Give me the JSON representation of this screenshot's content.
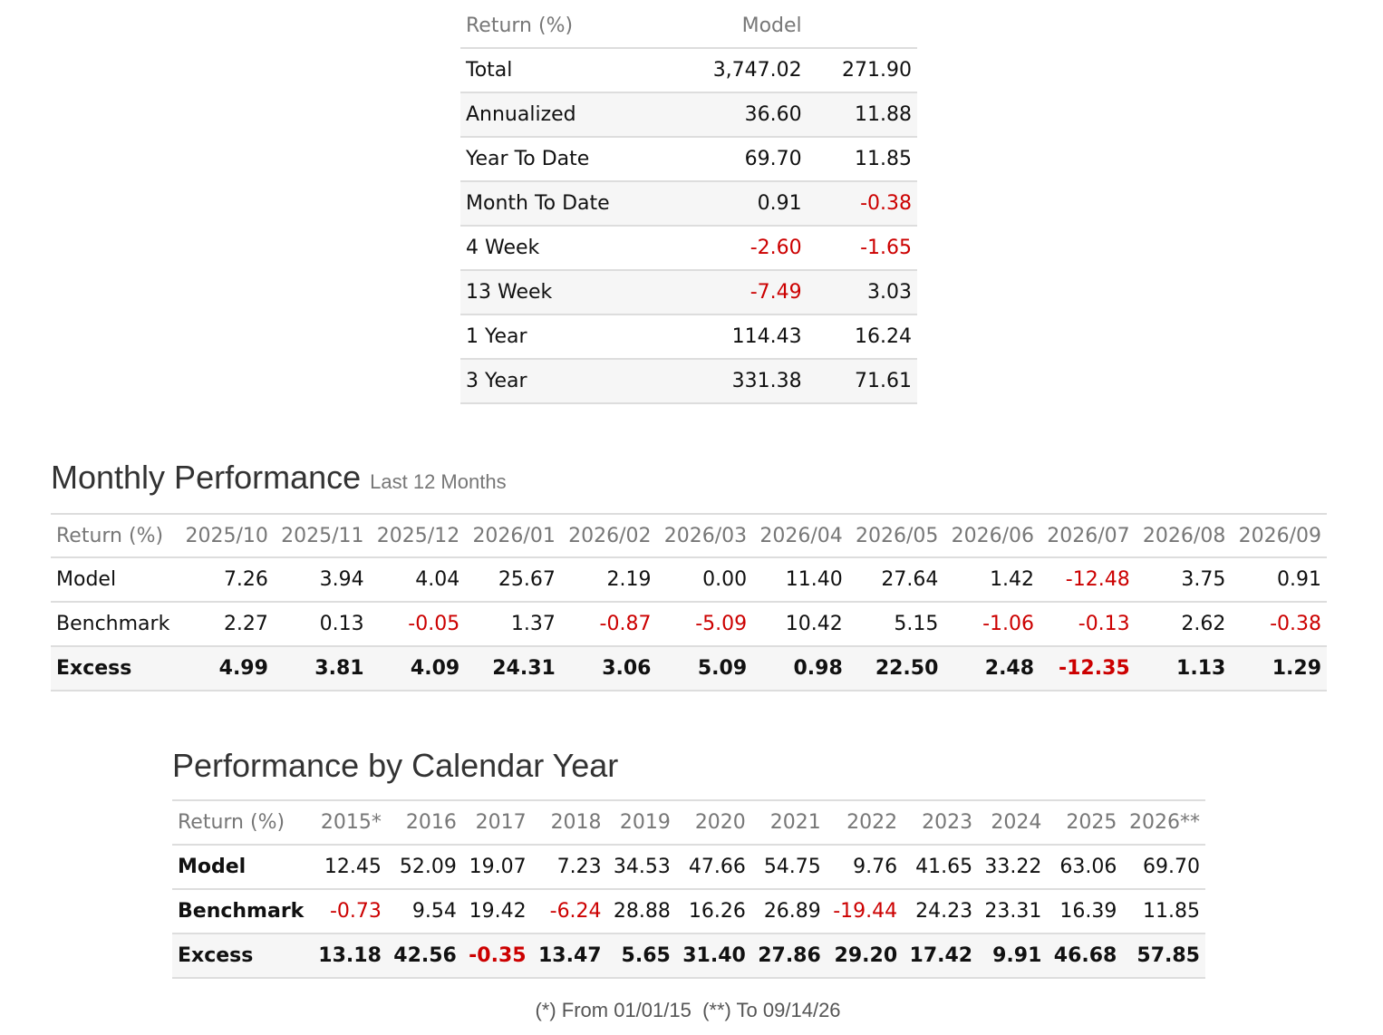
{
  "summary": {
    "headers": [
      "Return (%)",
      "Model",
      ""
    ],
    "rows": [
      {
        "label": "Total",
        "model": "3,747.02",
        "benchmark": "271.90"
      },
      {
        "label": "Annualized",
        "model": "36.60",
        "benchmark": "11.88"
      },
      {
        "label": "Year To Date",
        "model": "69.70",
        "benchmark": "11.85"
      },
      {
        "label": "Month To Date",
        "model": "0.91",
        "benchmark": "-0.38"
      },
      {
        "label": "4 Week",
        "model": "-2.60",
        "benchmark": "-1.65"
      },
      {
        "label": "13 Week",
        "model": "-7.49",
        "benchmark": "3.03"
      },
      {
        "label": "1 Year",
        "model": "114.43",
        "benchmark": "16.24"
      },
      {
        "label": "3 Year",
        "model": "331.38",
        "benchmark": "71.61"
      }
    ]
  },
  "monthly": {
    "title": "Monthly Performance",
    "subtitle": "Last 12 Months",
    "header_label": "Return (%)",
    "months": [
      "2025/10",
      "2025/11",
      "2025/12",
      "2026/01",
      "2026/02",
      "2026/03",
      "2026/04",
      "2026/05",
      "2026/06",
      "2026/07",
      "2026/08",
      "2026/09"
    ],
    "rows": [
      {
        "label": "Model",
        "values": [
          "7.26",
          "3.94",
          "4.04",
          "25.67",
          "2.19",
          "0.00",
          "11.40",
          "27.64",
          "1.42",
          "-12.48",
          "3.75",
          "0.91"
        ]
      },
      {
        "label": "Benchmark",
        "values": [
          "2.27",
          "0.13",
          "-0.05",
          "1.37",
          "-0.87",
          "-5.09",
          "10.42",
          "5.15",
          "-1.06",
          "-0.13",
          "2.62",
          "-0.38"
        ]
      },
      {
        "label": "Excess",
        "values": [
          "4.99",
          "3.81",
          "4.09",
          "24.31",
          "3.06",
          "5.09",
          "0.98",
          "22.50",
          "2.48",
          "-12.35",
          "1.13",
          "1.29"
        ]
      }
    ]
  },
  "yearly": {
    "title": "Performance by Calendar Year",
    "header_label": "Return (%)",
    "years": [
      "2015*",
      "2016",
      "2017",
      "2018",
      "2019",
      "2020",
      "2021",
      "2022",
      "2023",
      "2024",
      "2025",
      "2026**"
    ],
    "rows": [
      {
        "label": "Model",
        "values": [
          "12.45",
          "52.09",
          "19.07",
          "7.23",
          "34.53",
          "47.66",
          "54.75",
          "9.76",
          "41.65",
          "33.22",
          "63.06",
          "69.70"
        ]
      },
      {
        "label": "Benchmark",
        "values": [
          "-0.73",
          "9.54",
          "19.42",
          "-6.24",
          "28.88",
          "16.26",
          "26.89",
          "-19.44",
          "24.23",
          "23.31",
          "16.39",
          "11.85"
        ]
      },
      {
        "label": "Excess",
        "values": [
          "13.18",
          "42.56",
          "-0.35",
          "13.47",
          "5.65",
          "31.40",
          "27.86",
          "29.20",
          "17.42",
          "9.91",
          "46.68",
          "57.85"
        ]
      }
    ],
    "footnote": "(*) From 01/01/15  (**) To 09/14/26"
  },
  "colors": {
    "negative": "#cc0000",
    "header_text": "#777777",
    "row_border": "#dddddd",
    "stripe": "#f6f6f6"
  }
}
